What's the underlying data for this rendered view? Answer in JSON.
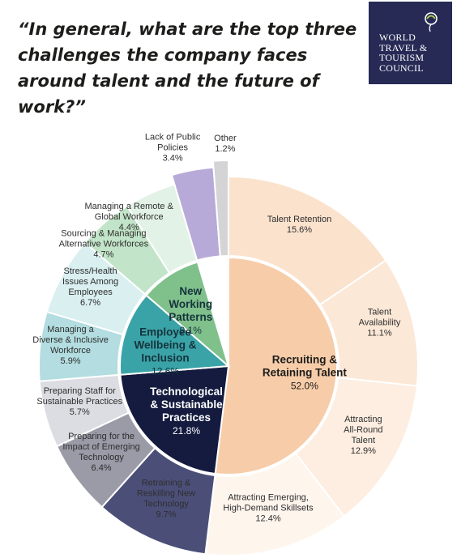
{
  "title": "“In general, what are the top three challenges the company faces around talent and the future of work?”",
  "logo": {
    "lines": [
      "WORLD",
      "TRAVEL &",
      "TOURISM",
      "COUNCIL"
    ],
    "icon": "globe-swirl-icon"
  },
  "chart_data": {
    "type": "sunburst",
    "inner": [
      {
        "name": "Recruiting & Retaining Talent",
        "lines": [
          "Recruiting &",
          "Retaining Talent"
        ],
        "value": 52.0,
        "label": "52.0%",
        "color": "#f7cca9",
        "text_color": "#1d1d1b"
      },
      {
        "name": "Technological & Sustainable Practices",
        "lines": [
          "Technological",
          "& Sustainable",
          "Practices"
        ],
        "value": 21.8,
        "label": "21.8%",
        "color": "#141b3f",
        "text_color": "#ffffff"
      },
      {
        "name": "Employee Wellbeing & Inclusion",
        "lines": [
          "Employee",
          "Wellbeing &",
          "Inclusion"
        ],
        "value": 12.6,
        "label": "12.6%",
        "color": "#3aa3a7",
        "text_color": "#15333d"
      },
      {
        "name": "New Working Patterns",
        "lines": [
          "New",
          "Working",
          "Patterns"
        ],
        "value": 9.1,
        "label": "9.1%",
        "color": "#7fc08b",
        "text_color": "#15333d"
      }
    ],
    "outer": [
      {
        "lines": [
          "Talent Retention",
          "15.6%"
        ],
        "value": 15.6,
        "parent": 0,
        "color": "#fbe2cd",
        "text_color": "#3a3a3a"
      },
      {
        "lines": [
          "Talent",
          "Availability",
          "11.1%"
        ],
        "value": 11.1,
        "parent": 0,
        "color": "#fce8d7",
        "text_color": "#3a3a3a"
      },
      {
        "lines": [
          "Attracting",
          "All-Round",
          "Talent",
          "12.9%"
        ],
        "value": 12.9,
        "parent": 0,
        "color": "#fdeee1",
        "text_color": "#3a3a3a"
      },
      {
        "lines": [
          "Attracting Emerging,",
          "High-Demand Skillsets",
          "12.4%"
        ],
        "value": 12.4,
        "parent": 0,
        "color": "#fef5ed",
        "text_color": "#3a3a3a"
      },
      {
        "lines": [
          "Retraining &",
          "Reskilling New",
          "Technology",
          "9.7%"
        ],
        "value": 9.7,
        "parent": 1,
        "color": "#4b4f78",
        "text_color": "#ffffff"
      },
      {
        "lines": [
          "Preparing for the",
          "Impact of Emerging",
          "Technology",
          "6.4%"
        ],
        "value": 6.4,
        "parent": 1,
        "color": "#9a9ba7",
        "text_color": "#3a3a3a"
      },
      {
        "lines": [
          "Preparing Staff for",
          "Sustainable Practices",
          "5.7%"
        ],
        "value": 5.7,
        "parent": 1,
        "color": "#dcdde3",
        "text_color": "#3a3a3a"
      },
      {
        "lines": [
          "Managing a",
          "Diverse & Inclusive",
          "Workforce",
          "5.9%"
        ],
        "value": 5.9,
        "parent": 2,
        "color": "#b3dde0",
        "text_color": "#3a3a3a"
      },
      {
        "lines": [
          "Stress/Health",
          "Issues Among",
          "Employees",
          "6.7%"
        ],
        "value": 6.7,
        "parent": 2,
        "color": "#d9eff0",
        "text_color": "#3a3a3a"
      },
      {
        "lines": [
          "Sourcing & Managing",
          "Alternative Workforces",
          "4.7%"
        ],
        "value": 4.7,
        "parent": 3,
        "color": "#c2e4c8",
        "text_color": "#3a3a3a"
      },
      {
        "lines": [
          "Managing a Remote &",
          "Global Workforce",
          "4.4%"
        ],
        "value": 4.4,
        "parent": 3,
        "color": "#e3f2e6",
        "text_color": "#3a3a3a"
      },
      {
        "lines": [
          "Lack of Public",
          "Policies",
          "3.4%"
        ],
        "value": 3.4,
        "parent": null,
        "color": "#b7aad8",
        "text_color": "#3a3a3a"
      },
      {
        "lines": [
          "Other",
          "1.2%"
        ],
        "value": 1.2,
        "parent": null,
        "color": "#d4d4d6",
        "text_color": "#3a3a3a"
      }
    ]
  }
}
